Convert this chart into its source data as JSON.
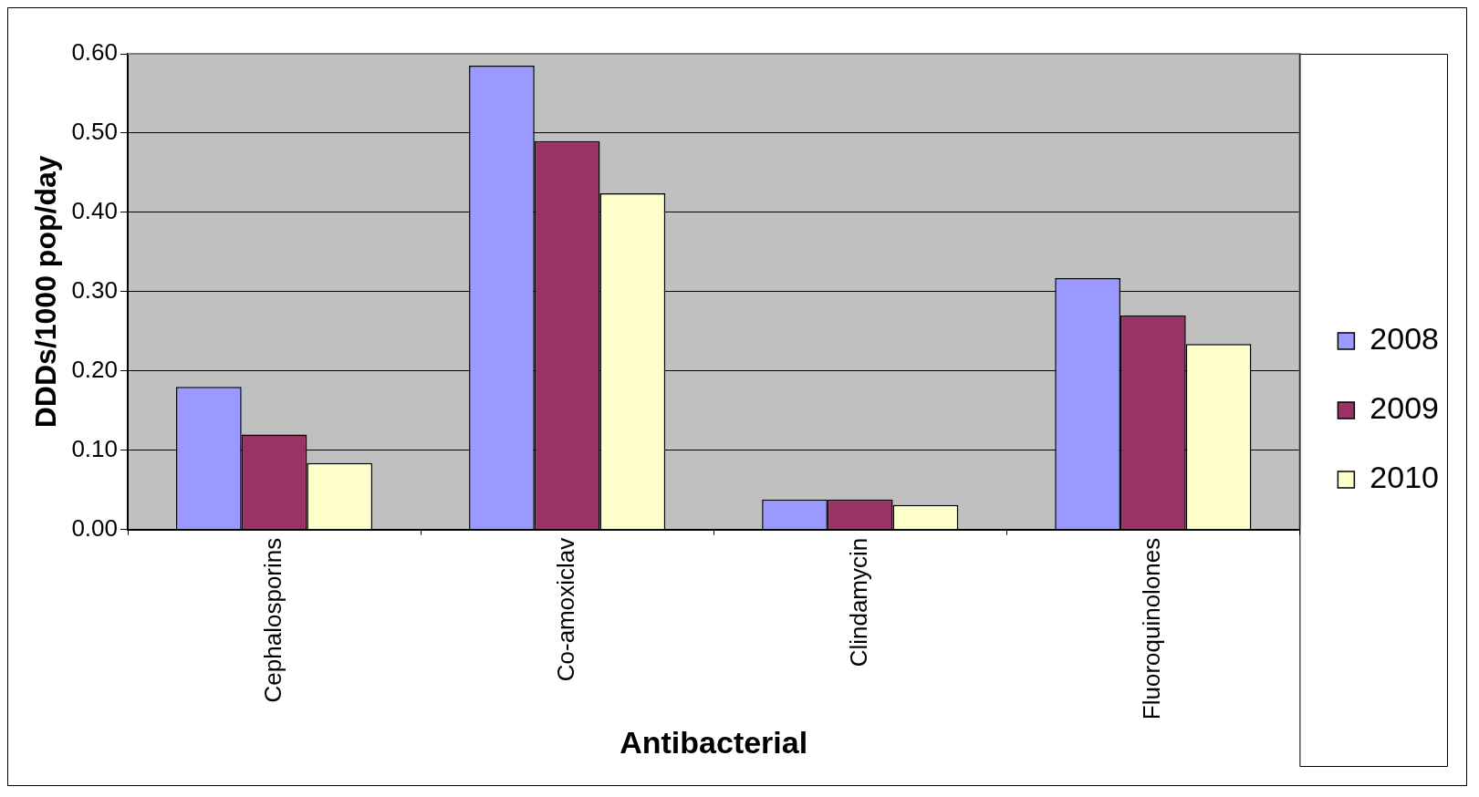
{
  "chart_data": {
    "type": "bar",
    "xlabel": "Antibacterial",
    "ylabel": "DDDs/1000 pop/day",
    "categories": [
      "Cephalosporins",
      "Co-amoxiclav",
      "Clindamycin",
      "Fluoroquinolones"
    ],
    "series": [
      {
        "name": "2008",
        "color": "#9999ff",
        "values": [
          0.18,
          0.585,
          0.038,
          0.317
        ]
      },
      {
        "name": "2009",
        "color": "#993366",
        "values": [
          0.12,
          0.49,
          0.038,
          0.27
        ]
      },
      {
        "name": "2010",
        "color": "#ffffcc",
        "values": [
          0.084,
          0.424,
          0.031,
          0.234
        ]
      }
    ],
    "ylim": [
      0,
      0.6
    ],
    "yticks": [
      {
        "value": 0,
        "label": "0.00"
      },
      {
        "value": 0.1,
        "label": "0.10"
      },
      {
        "value": 0.2,
        "label": "0.20"
      },
      {
        "value": 0.3,
        "label": "0.30"
      },
      {
        "value": 0.4,
        "label": "0.40"
      },
      {
        "value": 0.5,
        "label": "0.50"
      },
      {
        "value": 0.6,
        "label": "0.60"
      }
    ],
    "grid": "y",
    "legend": "right"
  }
}
